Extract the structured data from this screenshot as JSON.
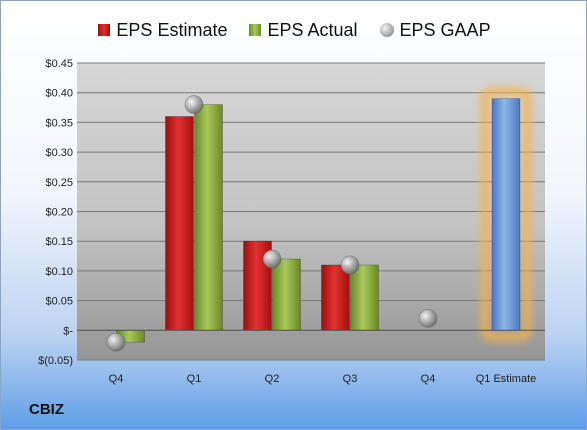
{
  "company": "CBIZ",
  "chart_data": {
    "type": "bar",
    "categories": [
      "Q4",
      "Q1",
      "Q2",
      "Q3",
      "Q4",
      "Q1 Estimate"
    ],
    "series": [
      {
        "name": "EPS Estimate",
        "values": [
          null,
          0.36,
          0.15,
          0.11,
          null,
          null
        ],
        "color": "#cc1f1f"
      },
      {
        "name": "EPS Actual",
        "values": [
          -0.02,
          0.38,
          0.12,
          0.11,
          null,
          null
        ],
        "color": "#8db043"
      },
      {
        "name": "EPS GAAP",
        "type": "scatter",
        "values": [
          -0.02,
          0.38,
          0.12,
          0.11,
          0.02,
          null
        ],
        "color": "#a6a6a6"
      },
      {
        "name": "",
        "values": [
          null,
          null,
          null,
          null,
          null,
          0.39
        ],
        "color": "#6a9bd8",
        "highlight": "#f5b24a"
      }
    ],
    "yticks": [
      "$0.45",
      "$0.40",
      "$0.35",
      "$0.30",
      "$0.25",
      "$0.20",
      "$0.15",
      "$0.10",
      "$0.05",
      "$-",
      "$(0.05)"
    ],
    "ylim": [
      -0.05,
      0.45
    ],
    "grid": true,
    "legend": "top-center"
  }
}
